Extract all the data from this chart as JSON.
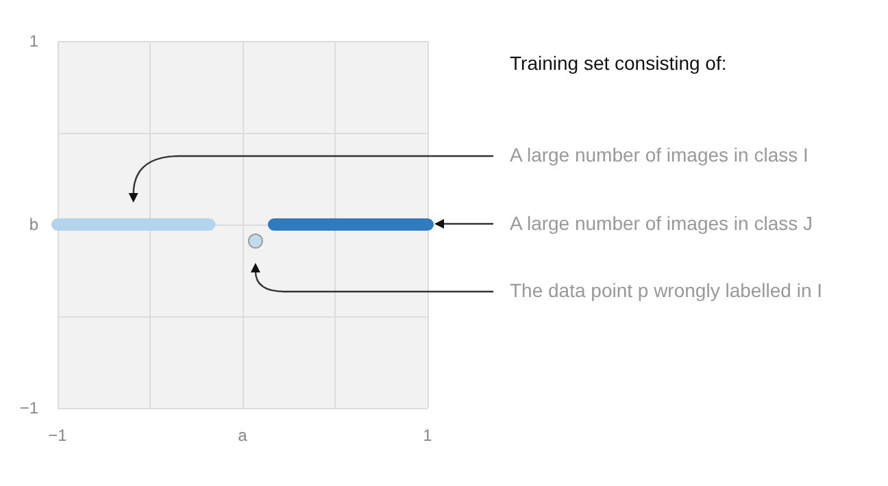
{
  "chart_data": {
    "type": "line",
    "title": "Training set consisting of:",
    "xlim": [
      -1,
      1
    ],
    "ylim": [
      -1,
      1
    ],
    "xticks": [
      {
        "value": -1,
        "label": "−1"
      },
      {
        "value": -0.5,
        "label": null
      },
      {
        "value": 0,
        "label": "a"
      },
      {
        "value": 0.5,
        "label": null
      },
      {
        "value": 1,
        "label": "1"
      }
    ],
    "yticks": [
      {
        "value": -1,
        "label": "−1"
      },
      {
        "value": -0.5,
        "label": null
      },
      {
        "value": 0,
        "label": "b"
      },
      {
        "value": 0.5,
        "label": null
      },
      {
        "value": 1,
        "label": "1"
      }
    ],
    "grid": true,
    "marker": "none",
    "series": [
      {
        "color": "#b3d4ea",
        "x": [
          -1,
          -0.18
        ],
        "values": [
          0,
          0
        ]
      },
      {
        "color": "#2f7bbd",
        "x": [
          0.17,
          1
        ],
        "values": [
          0,
          0
        ]
      },
      {
        "type": "scatter",
        "marker": "circle",
        "color": "#b3d4ea",
        "x": [
          0.07
        ],
        "values": [
          -0.09
        ]
      }
    ],
    "annotations": [
      "A large number of images in class I",
      "A large number of images in class J",
      "The data point p wrongly labelled in I"
    ]
  }
}
